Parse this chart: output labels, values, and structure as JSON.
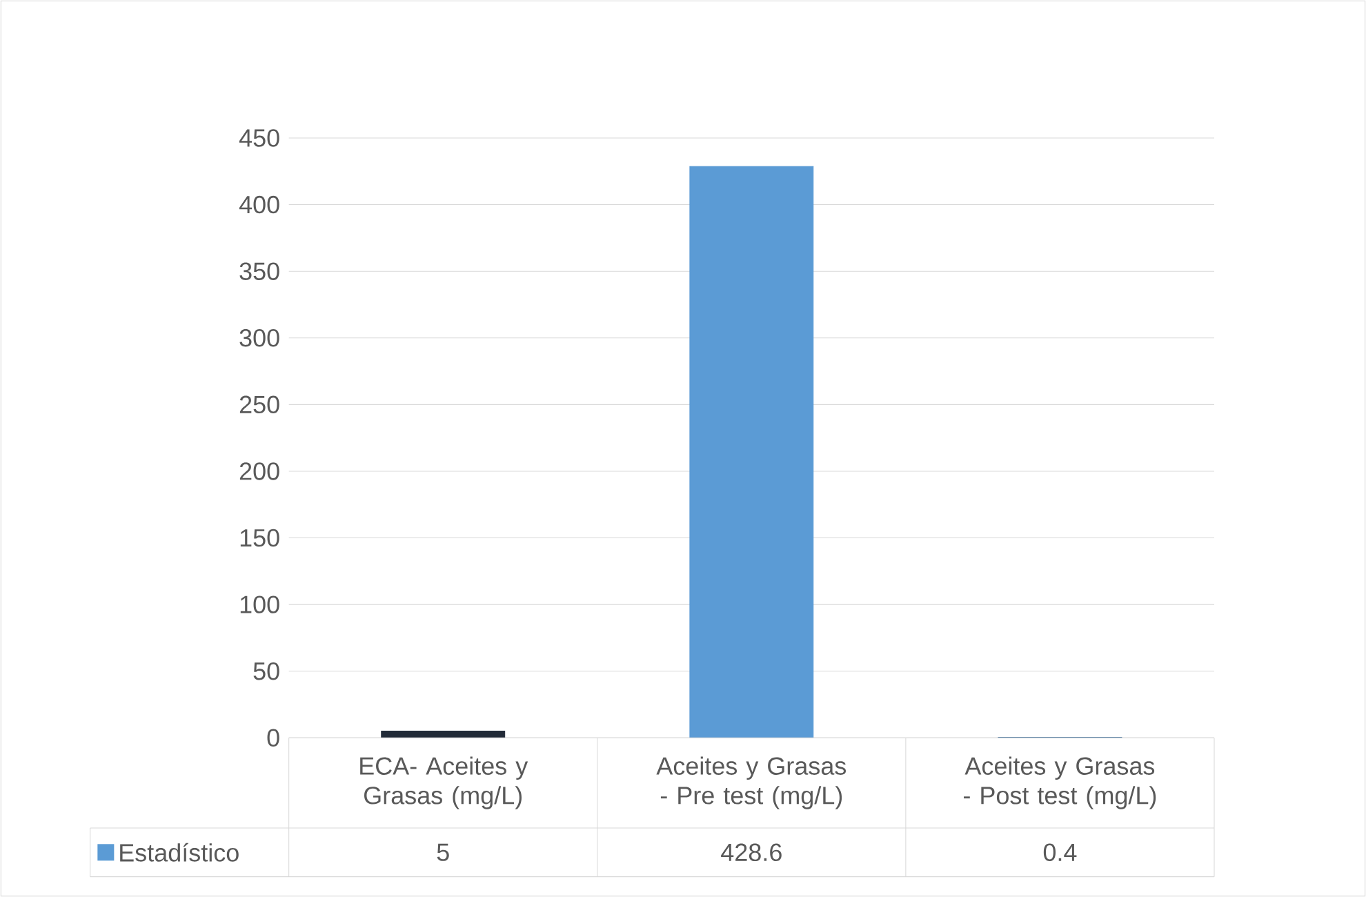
{
  "chart_data": {
    "type": "bar",
    "categories": [
      "ECA- Aceites y Grasas  (mg/L)",
      "Aceites y Grasas - Pre test (mg/L)",
      "Aceites y Grasas - Post test (mg/L)"
    ],
    "series": [
      {
        "name": "Estadístico",
        "color": "#5b9bd5",
        "colors": [
          "#222b38",
          "#5b9bd5",
          "#41719c"
        ],
        "values": [
          5,
          428.6,
          0.4
        ]
      }
    ],
    "ylim": [
      0,
      450
    ],
    "yticks": [
      0,
      50,
      100,
      150,
      200,
      250,
      300,
      350,
      400,
      450
    ],
    "grid": "y",
    "legend": "bottom",
    "data_labels": true
  }
}
